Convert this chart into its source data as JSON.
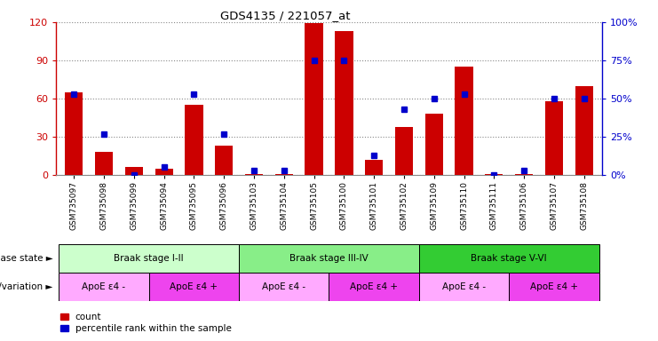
{
  "title": "GDS4135 / 221057_at",
  "samples": [
    "GSM735097",
    "GSM735098",
    "GSM735099",
    "GSM735094",
    "GSM735095",
    "GSM735096",
    "GSM735103",
    "GSM735104",
    "GSM735105",
    "GSM735100",
    "GSM735101",
    "GSM735102",
    "GSM735109",
    "GSM735110",
    "GSM735111",
    "GSM735106",
    "GSM735107",
    "GSM735108"
  ],
  "counts": [
    65,
    18,
    6,
    5,
    55,
    23,
    1,
    1,
    119,
    113,
    12,
    38,
    48,
    85,
    1,
    1,
    58,
    70
  ],
  "percentile_ranks": [
    53,
    27,
    0,
    5,
    53,
    27,
    3,
    3,
    75,
    75,
    13,
    43,
    50,
    53,
    0,
    3,
    50,
    50
  ],
  "ylim_left": [
    0,
    120
  ],
  "ylim_right": [
    0,
    100
  ],
  "left_yticks": [
    0,
    30,
    60,
    90,
    120
  ],
  "right_yticks": [
    0,
    25,
    50,
    75,
    100
  ],
  "left_yticklabels": [
    "0",
    "30",
    "60",
    "90",
    "120"
  ],
  "right_yticklabels": [
    "0%",
    "25%",
    "50%",
    "75%",
    "100%"
  ],
  "bar_color": "#cc0000",
  "dot_color": "#0000cc",
  "disease_state_label": "disease state",
  "genotype_label": "genotype/variation",
  "disease_groups": [
    {
      "label": "Braak stage I-II",
      "start": 0,
      "end": 6,
      "color": "#ccffcc"
    },
    {
      "label": "Braak stage III-IV",
      "start": 6,
      "end": 12,
      "color": "#88ee88"
    },
    {
      "label": "Braak stage V-VI",
      "start": 12,
      "end": 18,
      "color": "#33cc33"
    }
  ],
  "genotype_groups": [
    {
      "label": "ApoE ε4 -",
      "start": 0,
      "end": 3,
      "color": "#ffaaff"
    },
    {
      "label": "ApoE ε4 +",
      "start": 3,
      "end": 6,
      "color": "#ee44ee"
    },
    {
      "label": "ApoE ε4 -",
      "start": 6,
      "end": 9,
      "color": "#ffaaff"
    },
    {
      "label": "ApoE ε4 +",
      "start": 9,
      "end": 12,
      "color": "#ee44ee"
    },
    {
      "label": "ApoE ε4 -",
      "start": 12,
      "end": 15,
      "color": "#ffaaff"
    },
    {
      "label": "ApoE ε4 +",
      "start": 15,
      "end": 18,
      "color": "#ee44ee"
    }
  ],
  "grid_color": "#888888",
  "left_axis_color": "#cc0000",
  "right_axis_color": "#0000cc",
  "legend_count_label": "count",
  "legend_pct_label": "percentile rank within the sample",
  "xlim": [
    -0.6,
    17.6
  ]
}
